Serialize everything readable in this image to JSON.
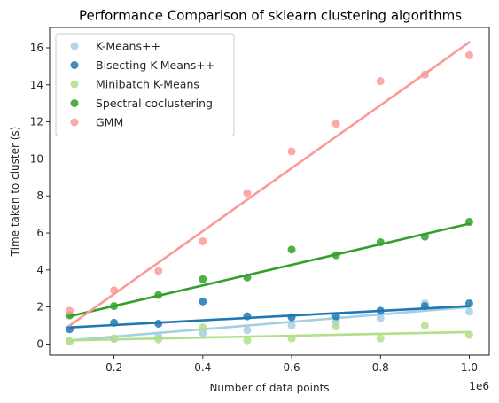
{
  "chart_data": {
    "type": "scatter",
    "title": "Performance Comparison of sklearn clustering algorithms",
    "xlabel": "Number of data points",
    "ylabel": "Time taken to cluster (s)",
    "x_offset_label": "1e6",
    "xlim": [
      0.055,
      1.045
    ],
    "ylim": [
      -0.6,
      17.1
    ],
    "xticks": [
      0.2,
      0.4,
      0.6,
      0.8,
      1.0
    ],
    "xtick_labels": [
      "0.2",
      "0.4",
      "0.6",
      "0.8",
      "1.0"
    ],
    "yticks": [
      0,
      2,
      4,
      6,
      8,
      10,
      12,
      14,
      16
    ],
    "ytick_labels": [
      "0",
      "2",
      "4",
      "6",
      "8",
      "10",
      "12",
      "14",
      "16"
    ],
    "grid": false,
    "legend_position": "top-left",
    "x": [
      0.1,
      0.2,
      0.3,
      0.4,
      0.5,
      0.6,
      0.7,
      0.8,
      0.9,
      1.0
    ],
    "series": [
      {
        "name": "K-Means++",
        "color": "#a6cee3",
        "values": [
          0.15,
          0.28,
          0.4,
          0.6,
          0.75,
          1.0,
          1.2,
          1.4,
          2.2,
          1.75
        ],
        "fit": [
          0.2,
          2.0
        ]
      },
      {
        "name": "Bisecting K-Means++",
        "color": "#1f78b4",
        "values": [
          0.8,
          1.15,
          1.1,
          2.3,
          1.5,
          1.45,
          1.5,
          1.8,
          2.05,
          2.2
        ],
        "fit": [
          0.9,
          2.05
        ]
      },
      {
        "name": "Minibatch K-Means",
        "color": "#b2df8a",
        "values": [
          0.15,
          0.3,
          0.25,
          0.9,
          0.2,
          0.3,
          0.95,
          0.3,
          1.0,
          0.5
        ],
        "fit": [
          0.2,
          0.65
        ]
      },
      {
        "name": "Spectral coclustering",
        "color": "#33a02c",
        "values": [
          1.55,
          2.05,
          2.65,
          3.5,
          3.6,
          5.1,
          4.8,
          5.5,
          5.8,
          6.6
        ],
        "fit": [
          1.5,
          6.5
        ]
      },
      {
        "name": "GMM",
        "color": "#fb9a99",
        "values": [
          1.8,
          2.9,
          3.95,
          5.55,
          8.15,
          10.4,
          11.9,
          14.2,
          14.55,
          15.6
        ],
        "fit": [
          1.0,
          16.3
        ]
      }
    ]
  }
}
